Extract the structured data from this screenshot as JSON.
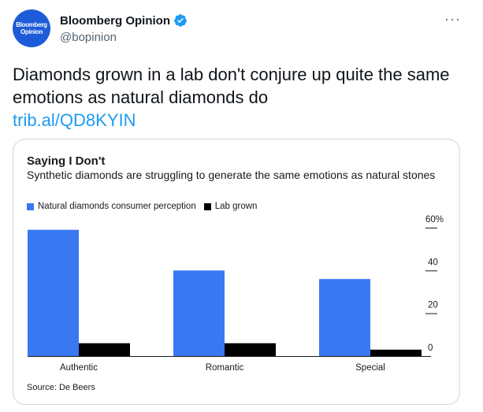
{
  "author": {
    "display_name": "Bloomberg Opinion",
    "handle": "@bopinion",
    "avatar_line1": "Bloomberg",
    "avatar_line2": "Opinion"
  },
  "tweet": {
    "text": "Diamonds grown in a lab don't conjure up quite the same emotions as natural diamonds do",
    "link": "trib.al/QD8KYIN"
  },
  "colors": {
    "natural": "#3a78f2",
    "lab": "#000000",
    "verified": "#1d9bf0",
    "link": "#1d9bf0"
  },
  "chart_data": {
    "type": "bar",
    "title": "Saying I Don't",
    "subtitle": "Synthetic diamonds are struggling to generate the same emotions as natural stones",
    "categories": [
      "Authentic",
      "Romantic",
      "Special"
    ],
    "series": [
      {
        "name": "Natural diamonds consumer perception",
        "values": [
          59,
          40,
          36
        ]
      },
      {
        "name": "Lab grown",
        "values": [
          6,
          6,
          3
        ]
      }
    ],
    "yticks": [
      "60%",
      "40",
      "20",
      "0"
    ],
    "ytick_values": [
      60,
      40,
      20,
      0
    ],
    "ylim": [
      0,
      60
    ],
    "xlabel": "",
    "ylabel": "",
    "grid": false,
    "legend": "top-left",
    "source": "Source: De Beers"
  }
}
